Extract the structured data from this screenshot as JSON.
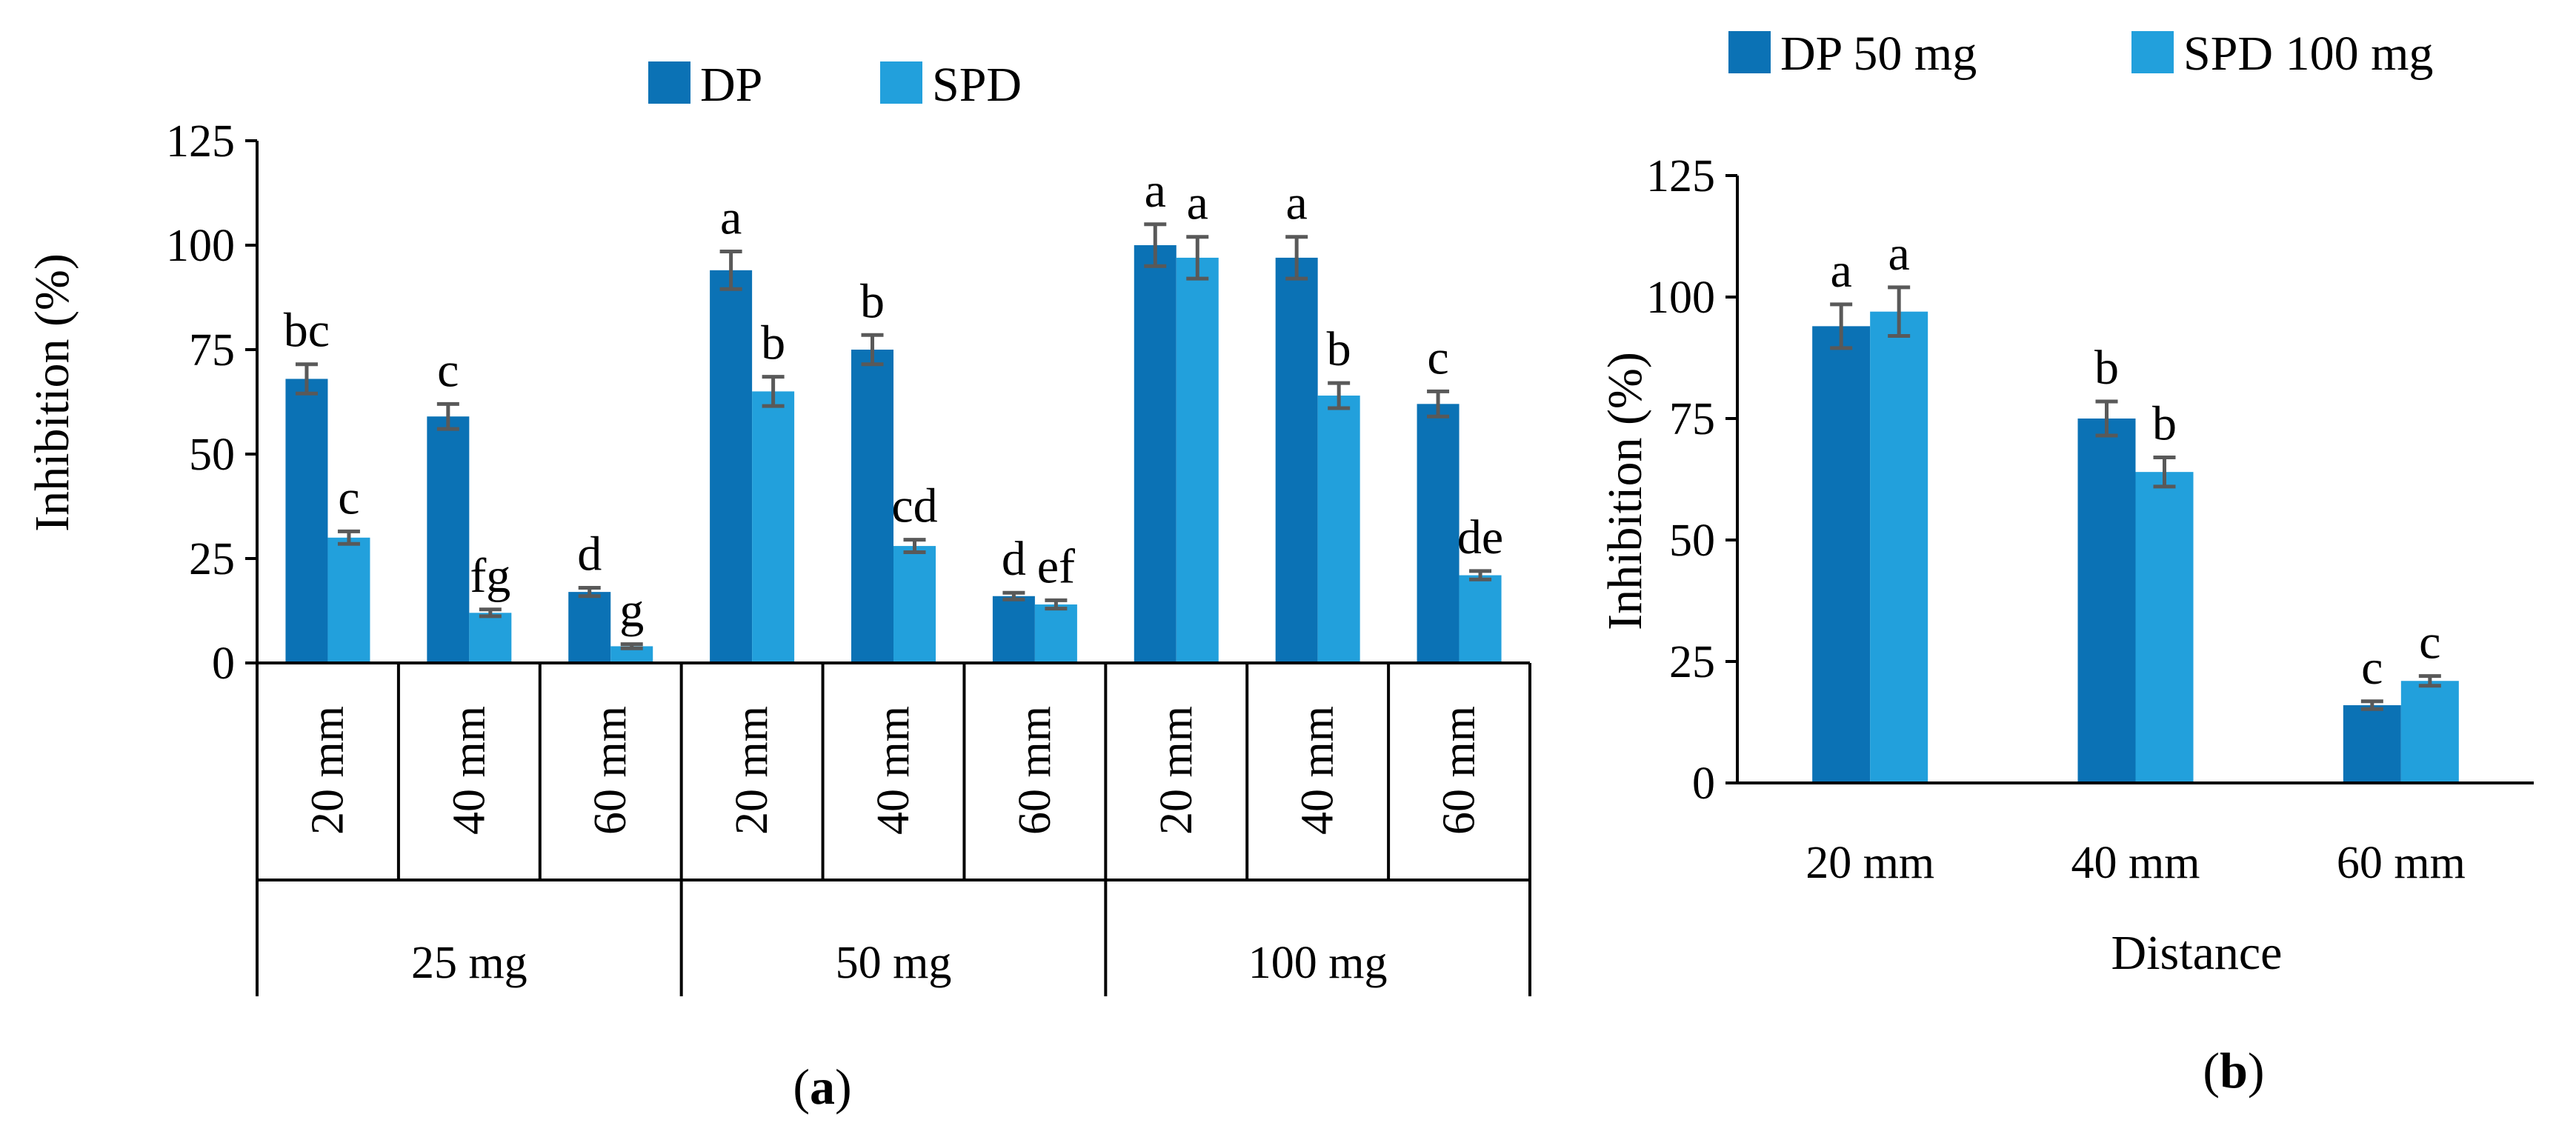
{
  "chart_data": [
    {
      "id": "a",
      "type": "bar",
      "caption_letter": "a",
      "ylabel": "Inhibition (%)",
      "ylim": [
        0,
        125
      ],
      "yticks": [
        "0",
        "25",
        "50",
        "75",
        "100",
        "125"
      ],
      "groups": [
        "25 mg",
        "50 mg",
        "100 mg"
      ],
      "subcategories": [
        "20 mm",
        "40 mm",
        "60 mm"
      ],
      "legend": [
        "DP",
        "SPD"
      ],
      "colors": [
        "#0b72b5",
        "#22a0dc"
      ],
      "series": [
        {
          "name": "DP",
          "values": [
            68,
            59,
            17,
            94,
            75,
            16,
            100,
            97,
            62
          ],
          "errors": [
            3.5,
            3,
            1,
            4.5,
            3.5,
            0.8,
            5,
            5,
            3
          ],
          "letters": [
            "bc",
            "c",
            "d",
            "a",
            "b",
            "d",
            "a",
            "a",
            "c"
          ]
        },
        {
          "name": "SPD",
          "values": [
            30,
            12,
            4,
            65,
            28,
            14,
            97,
            64,
            21
          ],
          "errors": [
            1.5,
            0.8,
            0.5,
            3.5,
            1.5,
            1,
            5,
            3,
            1
          ],
          "letters": [
            "c",
            "fg",
            "g",
            "b",
            "cd",
            "ef",
            "a",
            "b",
            "de"
          ]
        }
      ]
    },
    {
      "id": "b",
      "type": "bar",
      "caption_letter": "b",
      "ylabel": "Inhibition (%)",
      "xlabel": "Distance",
      "ylim": [
        0,
        125
      ],
      "yticks": [
        "0",
        "25",
        "50",
        "75",
        "100",
        "125"
      ],
      "categories": [
        "20 mm",
        "40 mm",
        "60 mm"
      ],
      "legend": [
        "DP 50 mg",
        "SPD 100 mg"
      ],
      "colors": [
        "#0b72b5",
        "#22a0dc"
      ],
      "series": [
        {
          "name": "DP 50 mg",
          "values": [
            94,
            75,
            16
          ],
          "errors": [
            4.5,
            3.5,
            0.8
          ],
          "letters": [
            "a",
            "b",
            "c"
          ]
        },
        {
          "name": "SPD 100 mg",
          "values": [
            97,
            64,
            21
          ],
          "errors": [
            5,
            3,
            1
          ],
          "letters": [
            "a",
            "b",
            "c"
          ]
        }
      ]
    }
  ]
}
